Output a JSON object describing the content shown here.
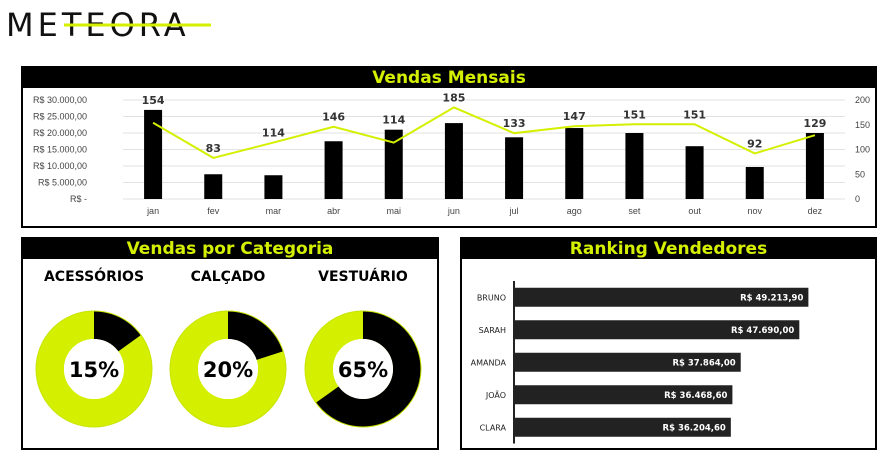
{
  "brand": {
    "logo_text": "METEORA",
    "accent": "#d4f000",
    "dark": "#000000"
  },
  "monthly": {
    "title": "Vendas Mensais"
  },
  "category": {
    "title": "Vendas por Categoria"
  },
  "ranking": {
    "title": "Ranking Vendedores"
  },
  "chart_data": [
    {
      "type": "bar+line",
      "title": "Vendas Mensais",
      "categories": [
        "jan",
        "fev",
        "mar",
        "abr",
        "mai",
        "jun",
        "jul",
        "ago",
        "set",
        "out",
        "nov",
        "dez"
      ],
      "series": [
        {
          "kind": "bar",
          "axis": "left",
          "values": [
            27000,
            7500,
            7200,
            17500,
            21000,
            23000,
            18700,
            21500,
            20000,
            16000,
            9700,
            20000
          ]
        },
        {
          "kind": "line",
          "axis": "right",
          "values": [
            154,
            83,
            114,
            146,
            114,
            185,
            133,
            147,
            151,
            151,
            92,
            129
          ]
        }
      ],
      "y_left_ticks": [
        "R$ -",
        "R$ 5.000,00",
        "R$ 10.000,00",
        "R$ 15.000,00",
        "R$ 20.000,00",
        "R$ 25.000,00",
        "R$ 30.000,00"
      ],
      "y_left_range": [
        0,
        30000
      ],
      "y_right_ticks": [
        "0",
        "50",
        "100",
        "150",
        "200"
      ],
      "y_right_range": [
        0,
        200
      ],
      "grid": true
    },
    {
      "type": "pie",
      "title": "Vendas por Categoria",
      "donuts": [
        {
          "label": "ACESSÓRIOS",
          "percent": 15,
          "display": "15%"
        },
        {
          "label": "CALÇADO",
          "percent": 20,
          "display": "20%"
        },
        {
          "label": "VESTUÁRIO",
          "percent": 65,
          "display": "65%"
        }
      ]
    },
    {
      "type": "bar",
      "orientation": "horizontal",
      "title": "Ranking Vendedores",
      "categories": [
        "BRUNO",
        "SARAH",
        "AMANDA",
        "JOÃO",
        "CLARA"
      ],
      "values": [
        49213.9,
        47690.0,
        37864.0,
        36468.6,
        36204.6
      ],
      "value_labels": [
        "R$ 49.213,90",
        "R$ 47.690,00",
        "R$ 37.864,00",
        "R$ 36.468,60",
        "R$ 36.204,60"
      ]
    }
  ]
}
